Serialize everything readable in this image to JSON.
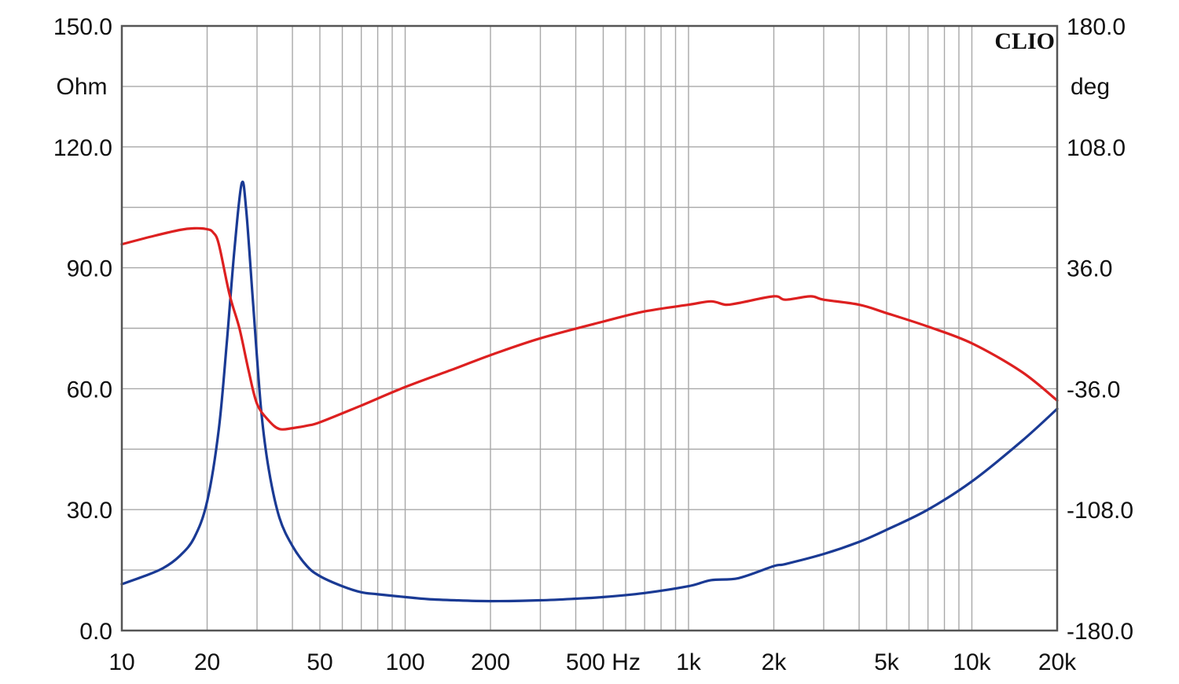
{
  "chart_data": {
    "type": "line",
    "brand": "CLIO",
    "x_scale": "log",
    "xlim": [
      10,
      20000
    ],
    "x_tick_values": [
      10,
      20,
      50,
      100,
      200,
      500,
      1000,
      2000,
      5000,
      10000,
      20000
    ],
    "x_tick_labels": [
      "10",
      "20",
      "50",
      "100",
      "200",
      "500 Hz",
      "1k",
      "2k",
      "5k",
      "10k",
      "20k"
    ],
    "y_left": {
      "unit_label": "Ohm",
      "ylim": [
        0,
        150
      ],
      "tick_values": [
        0,
        30,
        60,
        90,
        120,
        150
      ],
      "tick_labels": [
        "0.0",
        "30.0",
        "60.0",
        "90.0",
        "120.0",
        "150.0"
      ]
    },
    "y_right": {
      "unit_label": "deg",
      "ylim": [
        -180,
        180
      ],
      "tick_values": [
        -180,
        -108,
        -36,
        36,
        108,
        180
      ],
      "tick_labels": [
        "-180.0",
        "-108.0",
        "-36.0",
        "36.0",
        "108.0",
        "180.0"
      ]
    },
    "grid": true,
    "series": [
      {
        "axis": "left",
        "color": "#1a3a94",
        "points": [
          [
            10,
            11.5
          ],
          [
            12,
            13.5
          ],
          [
            14,
            15.5
          ],
          [
            16,
            18.5
          ],
          [
            18,
            23
          ],
          [
            20,
            32
          ],
          [
            22,
            50
          ],
          [
            23.5,
            72
          ],
          [
            25,
            95
          ],
          [
            26.5,
            111
          ],
          [
            27.5,
            104
          ],
          [
            29,
            82
          ],
          [
            31,
            55
          ],
          [
            33,
            40
          ],
          [
            36,
            28
          ],
          [
            40,
            21
          ],
          [
            45,
            16
          ],
          [
            50,
            13.5
          ],
          [
            60,
            11
          ],
          [
            70,
            9.5
          ],
          [
            80,
            9
          ],
          [
            100,
            8.3
          ],
          [
            120,
            7.8
          ],
          [
            150,
            7.5
          ],
          [
            200,
            7.3
          ],
          [
            300,
            7.5
          ],
          [
            400,
            7.9
          ],
          [
            500,
            8.3
          ],
          [
            700,
            9.3
          ],
          [
            1000,
            11
          ],
          [
            1200,
            12.5
          ],
          [
            1500,
            13
          ],
          [
            2000,
            16
          ],
          [
            2200,
            16.5
          ],
          [
            3000,
            19
          ],
          [
            4000,
            22
          ],
          [
            5000,
            25
          ],
          [
            7000,
            30
          ],
          [
            10000,
            37
          ],
          [
            15000,
            47
          ],
          [
            20000,
            55
          ]
        ]
      },
      {
        "axis": "right",
        "color": "#dd2020",
        "points": [
          [
            10,
            50
          ],
          [
            13,
            55
          ],
          [
            16,
            58.5
          ],
          [
            18,
            59.5
          ],
          [
            20,
            59
          ],
          [
            21,
            57
          ],
          [
            22,
            50
          ],
          [
            24,
            20
          ],
          [
            26,
            0
          ],
          [
            28,
            -25
          ],
          [
            30,
            -45
          ],
          [
            33,
            -55
          ],
          [
            36,
            -60
          ],
          [
            40,
            -59.5
          ],
          [
            45,
            -58
          ],
          [
            50,
            -56
          ],
          [
            70,
            -46
          ],
          [
            100,
            -35
          ],
          [
            150,
            -24
          ],
          [
            200,
            -16
          ],
          [
            300,
            -6
          ],
          [
            500,
            4
          ],
          [
            700,
            10
          ],
          [
            1000,
            14
          ],
          [
            1200,
            16
          ],
          [
            1350,
            14
          ],
          [
            1500,
            15
          ],
          [
            2000,
            19
          ],
          [
            2200,
            17
          ],
          [
            2700,
            19
          ],
          [
            3000,
            17
          ],
          [
            4000,
            14
          ],
          [
            5000,
            9
          ],
          [
            7000,
            1
          ],
          [
            10000,
            -9
          ],
          [
            15000,
            -26
          ],
          [
            20000,
            -43
          ]
        ]
      }
    ]
  }
}
